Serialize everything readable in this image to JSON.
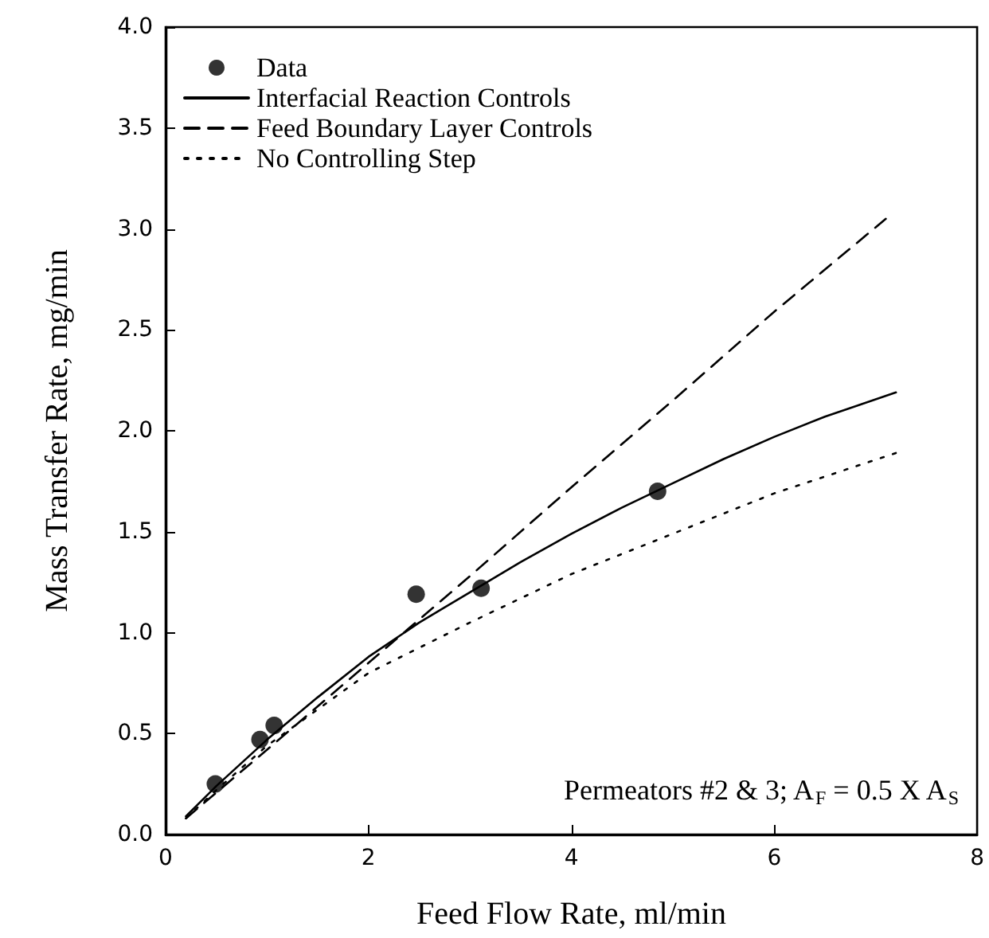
{
  "chart_data": {
    "type": "line",
    "xlabel": "Feed Flow Rate, ml/min",
    "ylabel": "Mass Transfer Rate, mg/min",
    "annotations": [
      "Permeators #2 & 3; A$_{F}$ = 0.5 X A$_{S}$"
    ],
    "xlim": [
      0,
      8
    ],
    "xticks": [
      0,
      2,
      4,
      6,
      8
    ],
    "ylim": [
      0,
      4
    ],
    "yticks": [
      {
        "value": 0,
        "label": "0.0"
      },
      0.5,
      {
        "value": 1,
        "label": "1.0"
      },
      1.5,
      {
        "value": 2,
        "label": "2.0"
      },
      2.5,
      {
        "value": 3,
        "label": "3.0"
      },
      3.5,
      {
        "value": 4,
        "label": "4.0"
      }
    ],
    "grid": false,
    "legend": "top left",
    "series": [
      {
        "name": "Data",
        "type": "scatter",
        "marker": "circle",
        "color": "#000000",
        "x": [
          0.49,
          0.93,
          1.07,
          2.47,
          3.11,
          4.85
        ],
        "values": [
          0.25,
          0.47,
          0.54,
          1.19,
          1.22,
          1.7
        ]
      },
      {
        "name": "Interfacial Reaction Controls",
        "line_style": "solid",
        "color": "#000000",
        "x": [
          0.2,
          0.5,
          1,
          1.5,
          2,
          2.5,
          3,
          3.5,
          4,
          4.5,
          5,
          5.5,
          6,
          6.5,
          7.2
        ],
        "values": [
          0.09,
          0.24,
          0.47,
          0.68,
          0.88,
          1.05,
          1.2,
          1.35,
          1.49,
          1.62,
          1.74,
          1.86,
          1.97,
          2.07,
          2.19
        ]
      },
      {
        "name": "Feed Boundary Layer Controls",
        "line_style": "dashed",
        "color": "#000000",
        "x": [
          0.2,
          1,
          2,
          3,
          4,
          5,
          6,
          7.1
        ],
        "values": [
          0.08,
          0.42,
          0.85,
          1.28,
          1.72,
          2.15,
          2.59,
          3.05
        ]
      },
      {
        "name": "No Controlling Step",
        "line_style": "dotted",
        "color": "#000000",
        "x": [
          0.2,
          0.5,
          1,
          2,
          3,
          4,
          5,
          6,
          7.2
        ],
        "values": [
          0.08,
          0.22,
          0.44,
          0.8,
          1.05,
          1.29,
          1.49,
          1.69,
          1.89
        ]
      }
    ]
  }
}
